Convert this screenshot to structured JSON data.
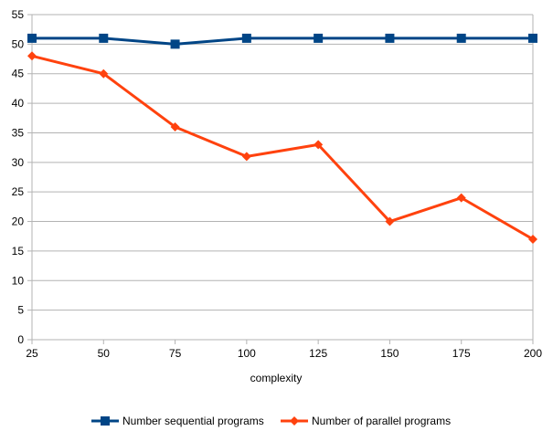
{
  "chart_data": {
    "type": "line",
    "title": "",
    "xlabel": "complexity",
    "ylabel": "",
    "x": [
      25,
      50,
      75,
      100,
      125,
      150,
      175,
      200
    ],
    "xlim": [
      25,
      200
    ],
    "ylim": [
      0,
      55
    ],
    "ytick_step": 5,
    "grid": true,
    "legend_position": "bottom",
    "series": [
      {
        "name": "Number sequential programs",
        "values": [
          51,
          51,
          50,
          51,
          51,
          51,
          51,
          51
        ],
        "color": "#004586",
        "marker": "square"
      },
      {
        "name": "Number of parallel programs",
        "values": [
          48,
          45,
          36,
          31,
          33,
          20,
          24,
          17
        ],
        "color": "#ff420e",
        "marker": "diamond"
      }
    ]
  }
}
